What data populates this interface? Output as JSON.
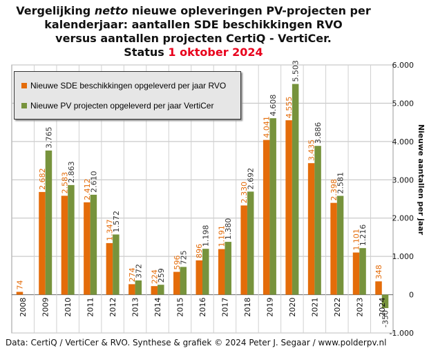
{
  "title": {
    "line1_pre": "Vergelijking ",
    "line1_em": "netto",
    "line1_post": " nieuwe opleveringen PV-projecten per",
    "line2": "kalenderjaar: aantallen SDE beschikkingen RVO",
    "line3": "versus aantallen projecten CertiQ - VertiCer.",
    "line4_pre": "Status ",
    "line4_red": "1 oktober 2024"
  },
  "footer": "Data: CertiQ / VertiCer & RVO. Synthese & grafiek © 2024 Peter J. Segaar / www.polderpv.nl",
  "colors": {
    "sde": "#e46c0a",
    "pv": "#77933c",
    "red": "#e8001c"
  },
  "chart_data": {
    "type": "bar",
    "categories": [
      "2008",
      "2009",
      "2010",
      "2011",
      "2012",
      "2013",
      "2014",
      "2015",
      "2016",
      "2017",
      "2018",
      "2019",
      "2020",
      "2021",
      "2022",
      "2023",
      "2024"
    ],
    "series": [
      {
        "name": "Nieuwe SDE beschikkingen opgeleverd per jaar RVO",
        "values": [
          74,
          2682,
          2583,
          2412,
          1347,
          274,
          224,
          596,
          896,
          1191,
          2330,
          4041,
          4555,
          3435,
          2398,
          1101,
          348
        ],
        "labels": [
          "74",
          "2.682",
          "2.583",
          "2.412",
          "1.347",
          "274",
          "224",
          "596",
          "896",
          "1.191",
          "2.330",
          "4.041",
          "4.555",
          "3.435",
          "2.398",
          "1.101",
          "348"
        ]
      },
      {
        "name": "Nieuwe PV projecten opgeleverd per jaar VertiCer",
        "values": [
          null,
          3765,
          2863,
          2610,
          1572,
          372,
          259,
          725,
          1198,
          1380,
          2692,
          4608,
          5503,
          3886,
          2581,
          1216,
          -350
        ],
        "labels": [
          "",
          "3.765",
          "2.863",
          "2.610",
          "1.572",
          "372",
          "259",
          "725",
          "1.198",
          "1.380",
          "2.692",
          "4.608",
          "5.503",
          "3.886",
          "2.581",
          "1.216",
          "-350"
        ]
      }
    ],
    "ylabel": "Nieuwe aantallen per jaar",
    "ylim": [
      -1000,
      6000
    ],
    "yticks": [
      -1000,
      0,
      1000,
      2000,
      3000,
      4000,
      5000,
      6000
    ],
    "ytick_labels": [
      "-1.000",
      "0",
      "1.000",
      "2.000",
      "3.000",
      "4.000",
      "5.000",
      "6.000"
    ],
    "y_axis_side": "right",
    "grid": true,
    "legend": "top-left"
  }
}
